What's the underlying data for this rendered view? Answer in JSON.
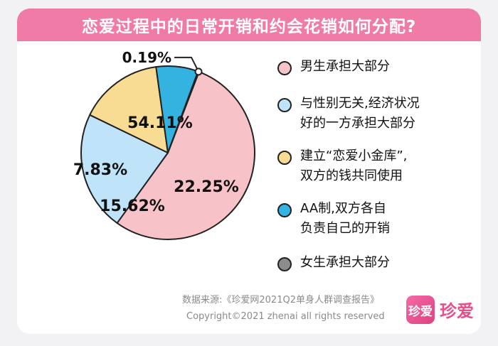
{
  "header": {
    "title": "恋爱过程中的日常开销和约会花销如何分配?"
  },
  "chart_data": {
    "type": "pie",
    "categories": [
      "男生承担大部分",
      "与性别无关,经济状况好的一方承担大部分",
      "建立“恋爱小金库”,双方的钱共同使用",
      "AA制,双方各自负责自己的开销",
      "女生承担大部分"
    ],
    "values": [
      54.11,
      22.25,
      15.62,
      7.83,
      0.19
    ],
    "value_labels": [
      "54.11%",
      "22.25%",
      "15.62%",
      "7.83%",
      "0.19%"
    ],
    "colors": [
      "#f7c3c9",
      "#bfe3f8",
      "#f9dc93",
      "#34b2e0",
      "#8c8c8c"
    ],
    "legend_placement": "right"
  },
  "legend": {
    "items": [
      "男生承担大部分",
      "与性别无关,经济状况\n好的一方承担大部分",
      "建立“恋爱小金库”,\n双方的钱共同使用",
      "AA制,双方各自\n负责自己的开销",
      "女生承担大部分"
    ]
  },
  "footer": {
    "source": "数据来源:《珍爱网2021Q2单身人群调查报告》",
    "copyright": "Copyright©2021  zhenai  all rights reserved",
    "logo_badge": "珍爱",
    "logo_text": "珍爱"
  }
}
